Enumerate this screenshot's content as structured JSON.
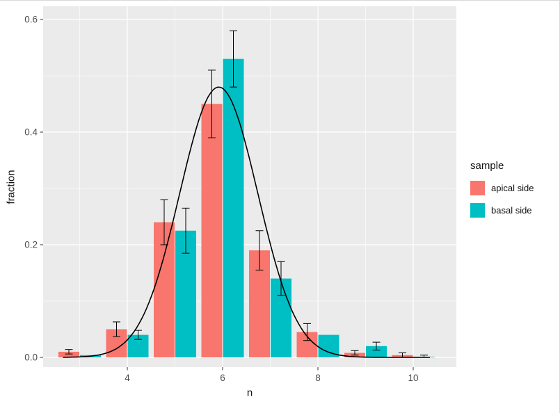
{
  "figure": {
    "background": "#ffffff",
    "panel_background": "#EBEBEB",
    "gridline_color": "#ffffff",
    "tick_color": "#333333",
    "tick_label_color": "#4D4D4D",
    "axis_title_color": "#111111",
    "errorbar_color": "#000000",
    "curve_color": "#000000"
  },
  "chart_data": {
    "type": "bar",
    "title": "",
    "xlabel": "n",
    "ylabel": "fraction",
    "x_ticks": [
      4,
      6,
      8,
      10
    ],
    "y_ticks": [
      0.0,
      0.2,
      0.4,
      0.6
    ],
    "y_tick_labels": [
      "0.0",
      "0.2",
      "0.4",
      "0.6"
    ],
    "x_range": [
      2.23,
      10.9
    ],
    "y_range": [
      -0.017,
      0.624
    ],
    "grid": true,
    "legend": {
      "title": "sample",
      "position": "right",
      "entries": [
        {
          "label": "apical side",
          "color": "#F8766D"
        },
        {
          "label": "basal side",
          "color": "#00BFC4"
        }
      ]
    },
    "categories": [
      3,
      4,
      5,
      6,
      7,
      8,
      9,
      10
    ],
    "series": [
      {
        "name": "apical side",
        "color": "#F8766D",
        "values": [
          0.01,
          0.05,
          0.24,
          0.45,
          0.19,
          0.045,
          0.008,
          0.004
        ],
        "error_low": [
          0.006,
          0.037,
          0.2,
          0.39,
          0.155,
          0.03,
          0.004,
          0.0
        ],
        "error_high": [
          0.014,
          0.063,
          0.28,
          0.51,
          0.225,
          0.06,
          0.012,
          0.008
        ]
      },
      {
        "name": "basal side",
        "color": "#00BFC4",
        "values": [
          0.004,
          0.04,
          0.225,
          0.53,
          0.14,
          0.04,
          0.02,
          0.001
        ],
        "error_low": [
          null,
          0.032,
          0.185,
          0.48,
          0.11,
          null,
          0.013,
          0.0
        ],
        "error_high": [
          null,
          0.048,
          0.265,
          0.58,
          0.17,
          null,
          0.027,
          0.004
        ]
      }
    ],
    "fit_curve": {
      "type": "gaussian",
      "amplitude": 0.48,
      "mean": 5.92,
      "sd": 0.82,
      "x_start": 2.65,
      "x_end": 10.35
    }
  }
}
